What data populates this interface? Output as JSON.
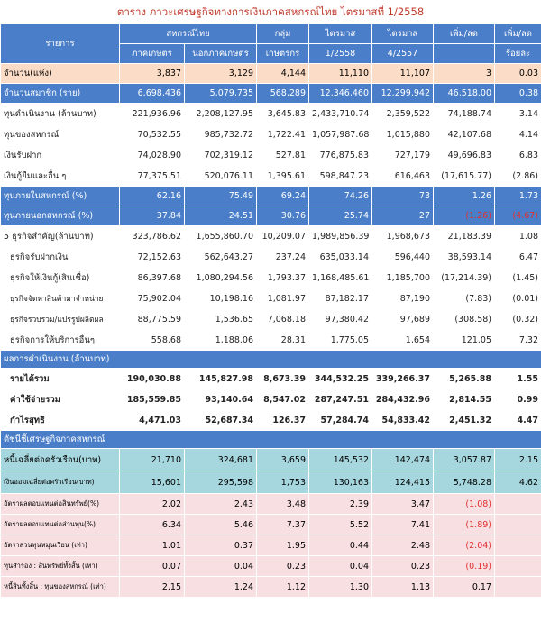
{
  "title": "ตาราง ภาวะเศรษฐกิจทางการเงินภาคสหกรณ์ไทย ไตรมาสที่ 1/2558",
  "header": {
    "items_label": "รายการ",
    "coop_group": "สหกรณ์ไทย",
    "group_label": "กลุ่ม",
    "q1_label": "ไตรมาส",
    "q4_label": "ไตรมาส",
    "change_label": "เพิ่ม/ลด",
    "pct_change_label": "เพิ่ม/ลด",
    "sub_agri": "ภาคเกษตร",
    "sub_nonagri": "นอกภาคเกษตร",
    "sub_farmer": "เกษตรกร",
    "sub_q1": "1/2558",
    "sub_q4": "4/2557",
    "sub_pct": "ร้อยละ"
  },
  "rows": {
    "count": [
      "จำนวน(แห่ง)",
      "3,837",
      "3,129",
      "4,144",
      "11,110",
      "11,107",
      "3",
      "0.03"
    ],
    "members": [
      "จำนวนสมาชิก (ราย)",
      "6,698,436",
      "5,079,735",
      "568,289",
      "12,346,460",
      "12,299,942",
      "46,518.00",
      "0.38"
    ],
    "capital": [
      "ทุนดำเนินงาน (ล้านบาท)",
      "221,936.96",
      "2,208,127.95",
      "3,645.83",
      "2,433,710.74",
      "2,359,522",
      "74,188.74",
      "3.14"
    ],
    "own_capital": [
      "ทุนของสหกรณ์",
      "70,532.55",
      "985,732.72",
      "1,722.41",
      "1,057,987.68",
      "1,015,880",
      "42,107.68",
      "4.14"
    ],
    "deposits": [
      "เงินรับฝาก",
      "74,028.90",
      "702,319.12",
      "527.81",
      "776,875.83",
      "727,179",
      "49,696.83",
      "6.83"
    ],
    "borrowings": [
      "เงินกู้ยืมและอื่น ๆ",
      "77,375.51",
      "520,076.11",
      "1,395.61",
      "598,847.23",
      "616,463",
      "(17,615.77)",
      "(2.86)"
    ],
    "internal_funds": [
      "ทุนภายในสหกรณ์ (%)",
      "62.16",
      "75.49",
      "69.24",
      "74.26",
      "73",
      "1.26",
      "1.73"
    ],
    "external_funds": [
      "ทุนภายนอกสหกรณ์ (%)",
      "37.84",
      "24.51",
      "30.76",
      "25.74",
      "27",
      "(1.26)",
      "(4.67)"
    ],
    "business5": [
      "5 ธุรกิจสำคัญ(ล้านบาท)",
      "323,786.62",
      "1,655,860.70",
      "10,209.07",
      "1,989,856.39",
      "1,968,673",
      "21,183.39",
      "1.08"
    ],
    "biz_deposit": [
      "ธุรกิจรับฝากเงิน",
      "72,152.63",
      "562,643.27",
      "237.24",
      "635,033.14",
      "596,440",
      "38,593.14",
      "6.47"
    ],
    "biz_loan": [
      "ธุรกิจให้เงินกู้(สินเชื่อ)",
      "86,397.68",
      "1,080,294.56",
      "1,793.37",
      "1,168,485.61",
      "1,185,700",
      "(17,214.39)",
      "(1.45)"
    ],
    "biz_supply": [
      "ธุรกิจจัดหาสินค้ามาจำหน่าย",
      "75,902.04",
      "10,198.16",
      "1,081.97",
      "87,182.17",
      "87,190",
      "(7.83)",
      "(0.01)"
    ],
    "biz_collect": [
      "ธุรกิจรวบรวม/แปรรูปผลิตผล",
      "88,775.59",
      "1,536.65",
      "7,068.18",
      "97,380.42",
      "97,689",
      "(308.58)",
      "(0.32)"
    ],
    "biz_service": [
      "ธุรกิจการให้บริการอื่นๆ",
      "558.68",
      "1,188.06",
      "28.31",
      "1,775.05",
      "1,654",
      "121.05",
      "7.32"
    ],
    "results_section": "ผลการดำเนินงาน (ล้านบาท)",
    "revenue": [
      "รายได้รวม",
      "190,030.88",
      "145,827.98",
      "8,673.39",
      "344,532.25",
      "339,266.37",
      "5,265.88",
      "1.55"
    ],
    "expense": [
      "ค่าใช้จ่ายรวม",
      "185,559.85",
      "93,140.64",
      "8,547.02",
      "287,247.51",
      "284,432.96",
      "2,814.55",
      "0.99"
    ],
    "profit": [
      "กำไรสุทธิ",
      "4,471.03",
      "52,687.34",
      "126.37",
      "57,284.74",
      "54,833.42",
      "2,451.32",
      "4.47"
    ],
    "index_section": "ดัชนีชี้เศรษฐกิจภาคสหกรณ์",
    "debt_per_hh": [
      "หนี้เฉลี่ยต่อครัวเรือน(บาท)",
      "21,710",
      "324,681",
      "3,659",
      "145,532",
      "142,474",
      "3,057.87",
      "2.15"
    ],
    "savings_per_hh": [
      "เงินออมเฉลี่ยต่อครัวเรือน(บาท)",
      "15,601",
      "295,598",
      "1,753",
      "130,163",
      "124,415",
      "5,748.28",
      "4.62"
    ],
    "roa": [
      "อัตราผลตอบแทนต่อสินทรัพย์(%)",
      "2.02",
      "2.43",
      "3.48",
      "2.39",
      "3.47",
      "(1.08)",
      ""
    ],
    "roe": [
      "อัตราผลตอบแทนต่อส่วนทุน(%)",
      "6.34",
      "5.46",
      "7.37",
      "5.52",
      "7.41",
      "(1.89)",
      ""
    ],
    "current_ratio": [
      "อัตราส่วนทุนหมุนเวียน (เท่า)",
      "1.01",
      "0.37",
      "1.95",
      "0.44",
      "2.48",
      "(2.04)",
      ""
    ],
    "debt_asset": [
      "ทุนสำรอง : สินทรัพย์ทั้งสิ้น (เท่า)",
      "0.07",
      "0.04",
      "0.23",
      "0.04",
      "0.23",
      "(0.19)",
      ""
    ],
    "debt_equity": [
      "หนี้สินทั้งสิ้น : ทุนของสหกรณ์ (เท่า)",
      "2.15",
      "1.24",
      "1.12",
      "1.30",
      "1.13",
      "0.17",
      ""
    ]
  }
}
